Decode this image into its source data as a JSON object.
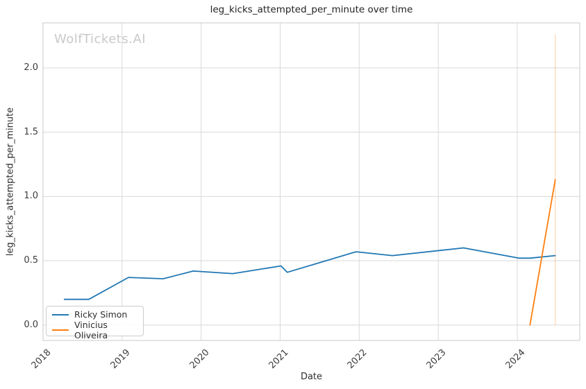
{
  "app": {
    "watermark": "WolfTickets.AI"
  },
  "chart_data": {
    "type": "line",
    "title": "leg_kicks_attempted_per_minute over time",
    "xlabel": "Date",
    "ylabel": "leg_kicks_attempted_per_minute",
    "x_ticks": [
      "2018",
      "2019",
      "2020",
      "2021",
      "2022",
      "2023",
      "2024"
    ],
    "y_ticks": [
      "0.0",
      "0.5",
      "1.0",
      "1.5",
      "2.0"
    ],
    "xlim": [
      2018.0,
      2024.79
    ],
    "ylim": [
      -0.12,
      2.35
    ],
    "grid": true,
    "legend_position": "lower left",
    "colors": {
      "grid": "#d9d9d9",
      "spine": "#c9c9c9",
      "series_blue": "#1f77b4",
      "series_orange": "#ff7f0e"
    },
    "series": [
      {
        "name": "Ricky Simon",
        "color": "#1f77b4",
        "points": [
          [
            2018.27,
            0.2
          ],
          [
            2018.58,
            0.2
          ],
          [
            2019.08,
            0.37
          ],
          [
            2019.52,
            0.36
          ],
          [
            2019.9,
            0.42
          ],
          [
            2020.4,
            0.4
          ],
          [
            2021.01,
            0.46
          ],
          [
            2021.09,
            0.41
          ],
          [
            2021.96,
            0.57
          ],
          [
            2022.42,
            0.54
          ],
          [
            2023.32,
            0.6
          ],
          [
            2024.02,
            0.52
          ],
          [
            2024.16,
            0.52
          ],
          [
            2024.48,
            0.54
          ]
        ]
      },
      {
        "name": "Vinicius Oliveira",
        "color": "#ff7f0e",
        "points": [
          [
            2024.16,
            0.0
          ],
          [
            2024.48,
            1.13
          ]
        ]
      }
    ],
    "annotations": [
      {
        "type": "vertical-line",
        "x": 2024.48,
        "y_from": 0.0,
        "y_to": 2.26,
        "color": "#ff7f0e",
        "opacity": 0.3
      }
    ]
  }
}
